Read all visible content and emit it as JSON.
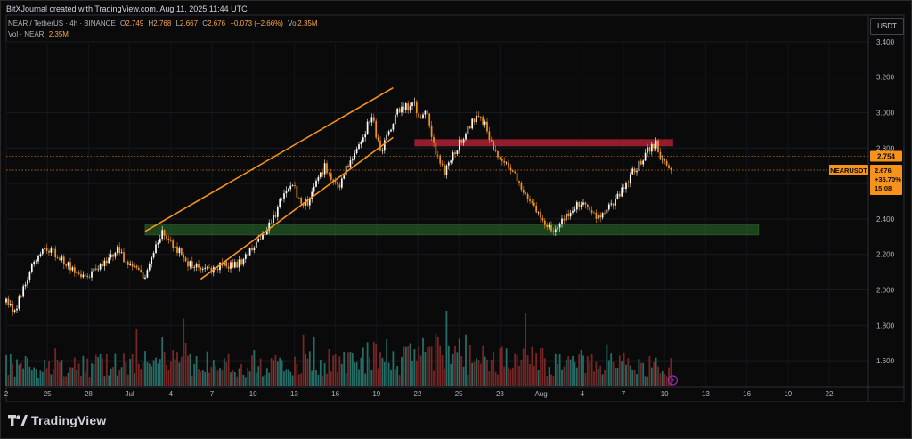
{
  "header": {
    "credit": "BitXJournal created with TradingView.com, Aug 11, 2025 11:44 UTC",
    "symbol": "NEAR / TetherUS · 4h · BINANCE",
    "ohlc": [
      {
        "k": "O",
        "v": "2.749"
      },
      {
        "k": "H",
        "v": "2.768"
      },
      {
        "k": "L",
        "v": "2.667"
      },
      {
        "k": "C",
        "v": "2.676"
      }
    ],
    "change": "−0.073 (−2.66%)",
    "vol_key": "Vol",
    "vol_value": "2.35M",
    "vol_line_label": "Vol · NEAR",
    "vol_line_value": "2.35M"
  },
  "price_axis": {
    "unit": "USDT",
    "ticks": [
      "3.400",
      "3.200",
      "3.000",
      "2.800",
      "2.600",
      "2.400",
      "2.200",
      "2.000",
      "1.800",
      "1.600"
    ]
  },
  "price_labels": {
    "level_price": "2.754",
    "symbol_tag": "NEARUSDT",
    "last_price": "2.676",
    "change_pct": "+35.70%",
    "countdown": "15:08"
  },
  "time_axis": {
    "ticks": [
      "2",
      "25",
      "28",
      "Jul",
      "4",
      "7",
      "10",
      "13",
      "16",
      "19",
      "22",
      "25",
      "28",
      "Aug",
      "4",
      "7",
      "10",
      "13",
      "16",
      "19",
      "22"
    ]
  },
  "branding": {
    "logo_text": "TradingView"
  },
  "colors": {
    "background": "#0a0a0a",
    "up": "#ffffff",
    "down": "#f7931a",
    "vol_up": "#2a7f77",
    "vol_down": "#8b2c2c",
    "channel": "#f7931a",
    "resistance_zone": "#b22234",
    "support_zone": "#2e7d32",
    "price_label": "#f7931a"
  },
  "chart_data": {
    "type": "candlestick",
    "symbol": "NEAR / TetherUS",
    "interval": "4h",
    "exchange": "BINANCE",
    "y_range": [
      1.45,
      3.55
    ],
    "x_ticks": [
      "2",
      "25",
      "28",
      "Jul",
      "4",
      "7",
      "10",
      "13",
      "16",
      "19",
      "22",
      "25",
      "28",
      "Aug",
      "4",
      "7",
      "10",
      "13",
      "16",
      "19",
      "22"
    ],
    "path": [
      [
        0,
        1.95
      ],
      [
        4,
        1.88
      ],
      [
        8,
        2.02
      ],
      [
        13,
        2.15
      ],
      [
        18,
        2.22
      ],
      [
        24,
        2.2
      ],
      [
        30,
        2.13
      ],
      [
        36,
        2.08
      ],
      [
        42,
        2.11
      ],
      [
        48,
        2.16
      ],
      [
        52,
        2.25
      ],
      [
        55,
        2.16
      ],
      [
        60,
        2.12
      ],
      [
        65,
        2.05
      ],
      [
        68,
        2.2
      ],
      [
        73,
        2.32
      ],
      [
        78,
        2.26
      ],
      [
        84,
        2.16
      ],
      [
        90,
        2.13
      ],
      [
        96,
        2.12
      ],
      [
        102,
        2.14
      ],
      [
        108,
        2.15
      ],
      [
        112,
        2.18
      ],
      [
        118,
        2.28
      ],
      [
        125,
        2.4
      ],
      [
        130,
        2.55
      ],
      [
        134,
        2.59
      ],
      [
        137,
        2.52
      ],
      [
        141,
        2.48
      ],
      [
        145,
        2.61
      ],
      [
        149,
        2.69
      ],
      [
        153,
        2.63
      ],
      [
        156,
        2.59
      ],
      [
        160,
        2.71
      ],
      [
        164,
        2.8
      ],
      [
        168,
        2.9
      ],
      [
        171,
        2.99
      ],
      [
        173,
        2.88
      ],
      [
        175,
        2.78
      ],
      [
        178,
        2.85
      ],
      [
        181,
        2.95
      ],
      [
        185,
        3.05
      ],
      [
        188,
        3.02
      ],
      [
        191,
        3.06
      ],
      [
        193,
        2.95
      ],
      [
        196,
        3.02
      ],
      [
        198,
        2.92
      ],
      [
        200,
        2.81
      ],
      [
        202,
        2.74
      ],
      [
        205,
        2.67
      ],
      [
        208,
        2.74
      ],
      [
        212,
        2.83
      ],
      [
        216,
        2.92
      ],
      [
        220,
        2.97
      ],
      [
        224,
        2.94
      ],
      [
        227,
        2.82
      ],
      [
        230,
        2.73
      ],
      [
        235,
        2.71
      ],
      [
        238,
        2.65
      ],
      [
        242,
        2.57
      ],
      [
        246,
        2.49
      ],
      [
        250,
        2.43
      ],
      [
        253,
        2.37
      ],
      [
        256,
        2.34
      ],
      [
        259,
        2.39
      ],
      [
        264,
        2.44
      ],
      [
        268,
        2.49
      ],
      [
        272,
        2.46
      ],
      [
        276,
        2.41
      ],
      [
        280,
        2.45
      ],
      [
        285,
        2.51
      ],
      [
        289,
        2.59
      ],
      [
        293,
        2.66
      ],
      [
        297,
        2.73
      ],
      [
        301,
        2.8
      ],
      [
        304,
        2.83
      ],
      [
        306,
        2.75
      ],
      [
        308,
        2.73
      ],
      [
        310,
        2.69
      ],
      [
        311,
        2.676
      ]
    ],
    "volume_profile": [
      [
        0,
        0.32
      ],
      [
        20,
        0.3
      ],
      [
        40,
        0.32
      ],
      [
        60,
        0.34
      ],
      [
        80,
        0.4
      ],
      [
        100,
        0.32
      ],
      [
        120,
        0.38
      ],
      [
        140,
        0.38
      ],
      [
        160,
        0.4
      ],
      [
        170,
        0.45
      ],
      [
        180,
        0.42
      ],
      [
        190,
        0.4
      ],
      [
        200,
        0.55
      ],
      [
        210,
        0.48
      ],
      [
        220,
        0.4
      ],
      [
        240,
        0.42
      ],
      [
        260,
        0.38
      ],
      [
        270,
        0.48
      ],
      [
        280,
        0.42
      ],
      [
        300,
        0.3
      ],
      [
        311,
        0.28
      ]
    ],
    "channel": {
      "upper": [
        [
          65,
          2.33
        ],
        [
          181,
          3.14
        ]
      ],
      "lower": [
        [
          91,
          2.06
        ],
        [
          181,
          2.86
        ]
      ]
    },
    "resistance_zone": {
      "bar_start": 191,
      "bar_end": 312,
      "y_low": 2.81,
      "y_high": 2.85
    },
    "support_zone": {
      "bar_start": 65,
      "bar_end": 352,
      "y_low": 2.31,
      "y_high": 2.37
    },
    "level_lines": [
      2.754,
      2.676
    ],
    "last_price": 2.676
  }
}
